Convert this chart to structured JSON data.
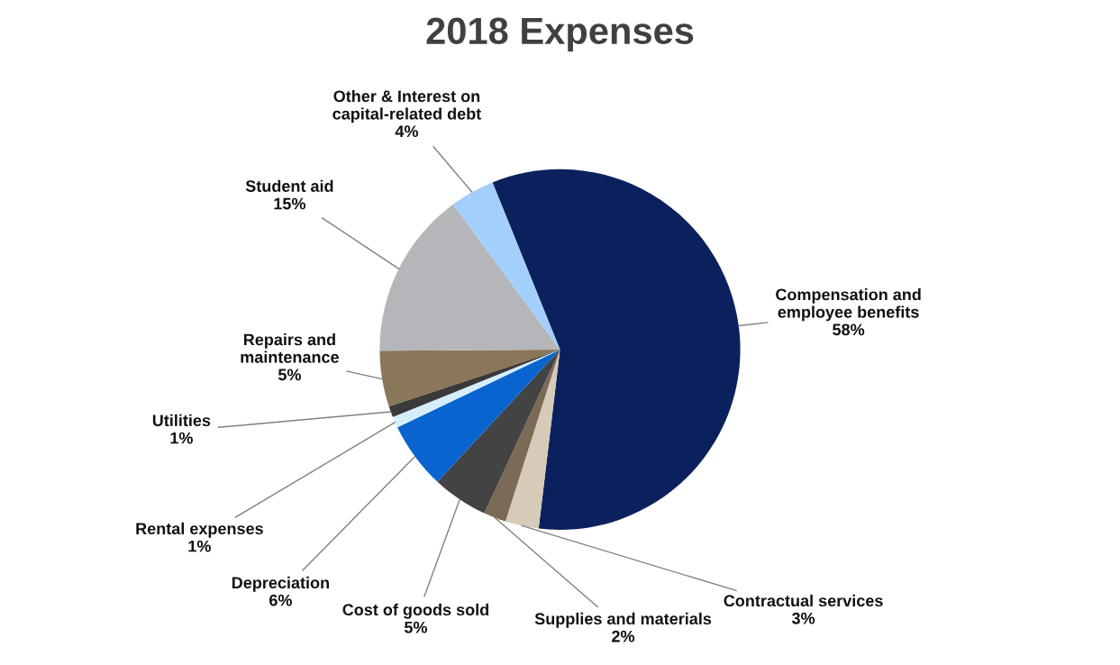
{
  "chart_data": {
    "type": "pie",
    "title": "2018 Expenses",
    "categories": [
      "Compensation and\nemployee benefits",
      "Contractual services",
      "Supplies and materials",
      "Cost of goods sold",
      "Depreciation",
      "Rental expenses",
      "Utilities",
      "Repairs and\nmaintenance",
      "Student aid",
      "Other & Interest on\ncapital-related debt"
    ],
    "values": [
      58,
      3,
      2,
      5,
      6,
      1,
      1,
      5,
      15,
      4
    ],
    "value_labels": [
      "58%",
      "3%",
      "2%",
      "5%",
      "6%",
      "1%",
      "1%",
      "5%",
      "15%",
      "4%"
    ],
    "colors": [
      "#0b215e",
      "#d6cab8",
      "#7b6a55",
      "#434343",
      "#0a64cf",
      "#d6eefb",
      "#3a3a3a",
      "#8a7658",
      "#b4b6b9",
      "#a3cffc"
    ],
    "legend": false
  }
}
